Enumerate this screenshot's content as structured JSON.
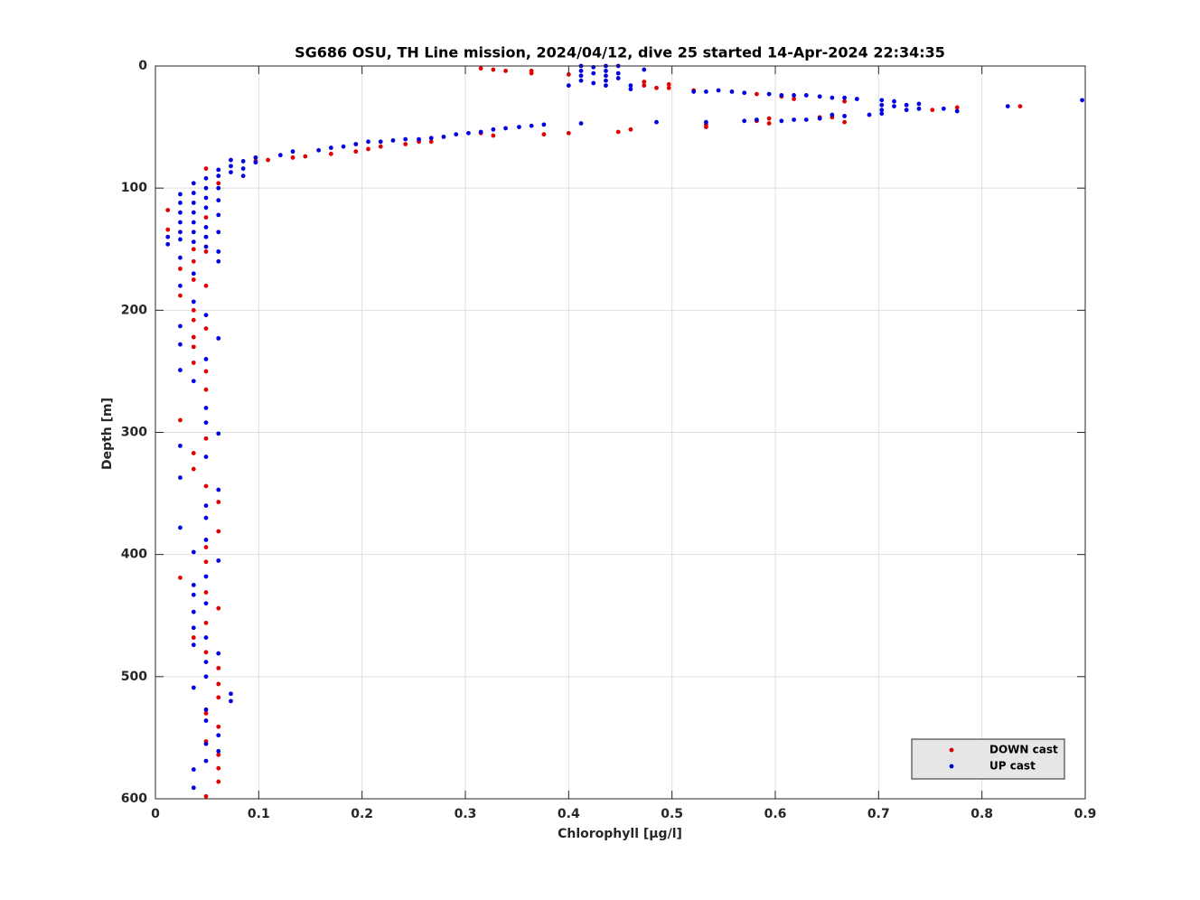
{
  "chart_data": {
    "type": "scatter",
    "title": "SG686 OSU, TH Line mission, 2024/04/12, dive 25 started 14-Apr-2024 22:34:35",
    "x_label": "Chlorophyll [μg/l]",
    "y_label": "Depth [m]",
    "xlim": [
      0,
      0.9
    ],
    "ylim": [
      0,
      600
    ],
    "y_reversed": true,
    "xticks": [
      0,
      0.1,
      0.2,
      0.3,
      0.4,
      0.5,
      0.6,
      0.7,
      0.8,
      0.9
    ],
    "yticks": [
      0,
      100,
      200,
      300,
      400,
      500,
      600
    ],
    "grid": true,
    "legend": "lower right",
    "series": [
      {
        "name": "DOWN cast",
        "color": "#e00000",
        "x": [
          0.315,
          0.327,
          0.339,
          0.364,
          0.364,
          0.4,
          0.473,
          0.473,
          0.485,
          0.497,
          0.497,
          0.521,
          0.582,
          0.606,
          0.618,
          0.667,
          0.752,
          0.776,
          0.837,
          0.533,
          0.533,
          0.594,
          0.594,
          0.582,
          0.667,
          0.655,
          0.643,
          0.46,
          0.448,
          0.4,
          0.376,
          0.327,
          0.315,
          0.267,
          0.255,
          0.242,
          0.218,
          0.206,
          0.194,
          0.17,
          0.145,
          0.133,
          0.109,
          0.097,
          0.049,
          0.061,
          0.012,
          0.012,
          0.049,
          0.049,
          0.037,
          0.049,
          0.037,
          0.024,
          0.037,
          0.049,
          0.024,
          0.037,
          0.037,
          0.049,
          0.037,
          0.037,
          0.037,
          0.049,
          0.049,
          0.024,
          0.049,
          0.037,
          0.037,
          0.049,
          0.061,
          0.061,
          0.049,
          0.049,
          0.024,
          0.049,
          0.061,
          0.049,
          0.037,
          0.049,
          0.061,
          0.061,
          0.061,
          0.049,
          0.061,
          0.049,
          0.061,
          0.061,
          0.061,
          0.049
        ],
        "values": [
          2,
          3,
          4,
          4,
          6,
          7,
          13,
          16,
          18,
          15,
          18,
          20,
          23,
          25,
          27,
          29,
          36,
          34,
          33,
          48,
          50,
          47,
          43,
          45,
          46,
          42,
          42,
          52,
          54,
          55,
          56,
          57,
          55,
          62,
          62,
          64,
          66,
          68,
          70,
          72,
          74,
          75,
          77,
          78,
          84,
          96,
          118,
          134,
          124,
          140,
          150,
          152,
          160,
          166,
          175,
          180,
          188,
          200,
          208,
          215,
          222,
          230,
          243,
          250,
          265,
          290,
          305,
          317,
          330,
          344,
          357,
          381,
          394,
          406,
          419,
          431,
          444,
          456,
          468,
          480,
          493,
          506,
          517,
          530,
          541,
          553,
          564,
          575,
          586,
          598
        ]
      },
      {
        "name": "UP cast",
        "color": "#0000e0",
        "x": [
          0.412,
          0.412,
          0.412,
          0.412,
          0.424,
          0.424,
          0.436,
          0.436,
          0.436,
          0.436,
          0.448,
          0.448,
          0.448,
          0.424,
          0.436,
          0.46,
          0.46,
          0.473,
          0.4,
          0.521,
          0.533,
          0.545,
          0.558,
          0.57,
          0.594,
          0.606,
          0.618,
          0.63,
          0.643,
          0.655,
          0.667,
          0.679,
          0.703,
          0.703,
          0.703,
          0.715,
          0.715,
          0.727,
          0.727,
          0.739,
          0.739,
          0.763,
          0.776,
          0.825,
          0.897,
          0.412,
          0.485,
          0.533,
          0.57,
          0.582,
          0.606,
          0.618,
          0.63,
          0.643,
          0.667,
          0.691,
          0.703,
          0.655,
          0.376,
          0.364,
          0.352,
          0.339,
          0.327,
          0.315,
          0.303,
          0.291,
          0.279,
          0.267,
          0.255,
          0.242,
          0.23,
          0.218,
          0.206,
          0.194,
          0.182,
          0.17,
          0.158,
          0.133,
          0.121,
          0.097,
          0.097,
          0.085,
          0.085,
          0.085,
          0.073,
          0.073,
          0.073,
          0.061,
          0.061,
          0.024,
          0.024,
          0.024,
          0.024,
          0.024,
          0.024,
          0.037,
          0.037,
          0.037,
          0.037,
          0.037,
          0.037,
          0.037,
          0.049,
          0.049,
          0.049,
          0.049,
          0.049,
          0.049,
          0.049,
          0.061,
          0.061,
          0.061,
          0.061,
          0.061,
          0.061,
          0.012,
          0.012,
          0.024,
          0.037,
          0.024,
          0.037,
          0.049,
          0.024,
          0.061,
          0.024,
          0.049,
          0.024,
          0.037,
          0.049,
          0.049,
          0.061,
          0.024,
          0.049,
          0.024,
          0.061,
          0.049,
          0.049,
          0.024,
          0.049,
          0.037,
          0.061,
          0.049,
          0.037,
          0.037,
          0.049,
          0.037,
          0.037,
          0.049,
          0.037,
          0.061,
          0.049,
          0.049,
          0.037,
          0.073,
          0.073,
          0.049,
          0.049,
          0.061,
          0.049,
          0.061,
          0.049,
          0.037,
          0.037
        ],
        "values": [
          0,
          4,
          8,
          12,
          1,
          6,
          0,
          4,
          8,
          12,
          0,
          6,
          10,
          14,
          16,
          16,
          19,
          3,
          16,
          21,
          21,
          20,
          21,
          22,
          23,
          24,
          24,
          24,
          25,
          26,
          26,
          27,
          28,
          32,
          36,
          29,
          33,
          32,
          36,
          31,
          35,
          35,
          37,
          33,
          28,
          47,
          46,
          46,
          45,
          44,
          45,
          44,
          44,
          43,
          41,
          40,
          39,
          40,
          48,
          49,
          50,
          51,
          52,
          54,
          55,
          56,
          58,
          59,
          60,
          60,
          61,
          62,
          62,
          64,
          66,
          67,
          69,
          70,
          73,
          75,
          79,
          78,
          84,
          90,
          77,
          82,
          87,
          85,
          90,
          105,
          112,
          120,
          128,
          136,
          142,
          96,
          104,
          112,
          120,
          128,
          136,
          144,
          92,
          100,
          108,
          116,
          132,
          140,
          148,
          100,
          110,
          122,
          136,
          152,
          160,
          140,
          146,
          157,
          170,
          180,
          193,
          204,
          213,
          223,
          228,
          240,
          249,
          258,
          280,
          292,
          301,
          311,
          320,
          337,
          347,
          360,
          370,
          378,
          388,
          398,
          405,
          418,
          425,
          433,
          440,
          447,
          460,
          468,
          474,
          481,
          488,
          500,
          509,
          514,
          520,
          527,
          536,
          548,
          555,
          561,
          569,
          576,
          591
        ]
      }
    ]
  }
}
